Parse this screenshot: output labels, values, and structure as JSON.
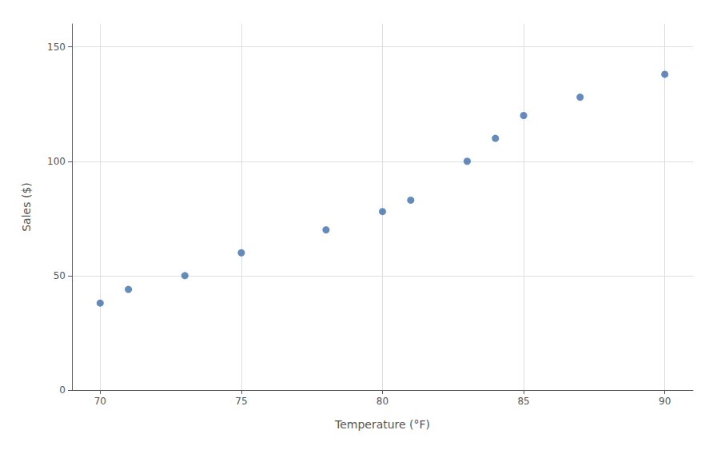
{
  "chart_data": {
    "type": "scatter",
    "x": [
      70,
      71,
      73,
      75,
      78,
      80,
      81,
      83,
      84,
      85,
      87,
      90
    ],
    "y": [
      38,
      44,
      50,
      60,
      70,
      78,
      83,
      100,
      110,
      120,
      128,
      138
    ],
    "xlabel": "Temperature (°F)",
    "ylabel": "Sales ($)",
    "xlim": [
      69,
      91
    ],
    "ylim": [
      0,
      160
    ],
    "xticks": [
      70,
      75,
      80,
      85,
      90
    ],
    "yticks": [
      0,
      50,
      100,
      150
    ],
    "color": "#3D6EAA",
    "grid": true
  }
}
